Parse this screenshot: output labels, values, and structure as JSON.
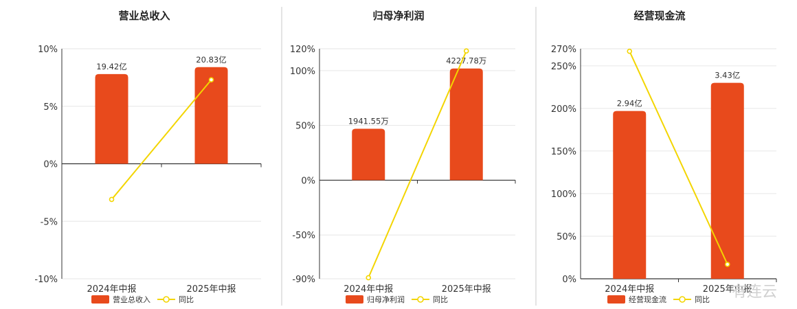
{
  "colors": {
    "bar": "#E84A1C",
    "line": "#F3D500",
    "marker_fill": "#FFFFFF"
  },
  "watermark": "有连云",
  "chart_data": [
    {
      "type": "bar",
      "title": "营业总收入",
      "categories": [
        "2024年中报",
        "2025年中报"
      ],
      "series": [
        {
          "name": "营业总收入",
          "values": [
            7.8,
            8.4
          ],
          "labels": [
            "19.42亿",
            "20.83亿"
          ]
        },
        {
          "name": "同比",
          "type": "line",
          "values": [
            -3.1,
            7.3
          ]
        }
      ],
      "y_ticks": [
        10,
        5,
        0,
        -5,
        -10
      ],
      "y_tick_labels": [
        "10%",
        "5%",
        "0%",
        "-5%",
        "-10%"
      ],
      "ylim": [
        -10,
        10
      ],
      "grid": true,
      "legend_position": "bottom"
    },
    {
      "type": "bar",
      "title": "归母净利润",
      "categories": [
        "2024年中报",
        "2025年中报"
      ],
      "series": [
        {
          "name": "归母净利润",
          "values": [
            47,
            102
          ],
          "labels": [
            "1941.55万",
            "4227.78万"
          ]
        },
        {
          "name": "同比",
          "type": "line",
          "values": [
            -89,
            118
          ]
        }
      ],
      "y_ticks": [
        120,
        100,
        50,
        0,
        -50,
        -90
      ],
      "y_tick_labels": [
        "120%",
        "100%",
        "50%",
        "0%",
        "-50%",
        "-90%"
      ],
      "ylim": [
        -90,
        120
      ],
      "grid": true,
      "legend_position": "bottom"
    },
    {
      "type": "bar",
      "title": "经营现金流",
      "categories": [
        "2024年中报",
        "2025年中报"
      ],
      "series": [
        {
          "name": "经营现金流",
          "values": [
            197,
            230
          ],
          "labels": [
            "2.94亿",
            "3.43亿"
          ]
        },
        {
          "name": "同比",
          "type": "line",
          "values": [
            267,
            17
          ]
        }
      ],
      "y_ticks": [
        270,
        250,
        200,
        150,
        100,
        50,
        0
      ],
      "y_tick_labels": [
        "270%",
        "250%",
        "200%",
        "150%",
        "100%",
        "50%",
        "0%"
      ],
      "ylim": [
        0,
        270
      ],
      "grid": true,
      "legend_position": "bottom"
    }
  ]
}
